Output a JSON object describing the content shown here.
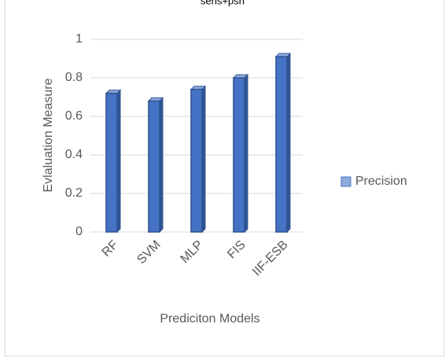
{
  "chart_data": {
    "type": "bar",
    "title": "sens+psn",
    "x_label": "Prediciton Models",
    "y_label": "Evlaluation Measure",
    "categories": [
      "RF",
      "SVM",
      "MLP",
      "FIS",
      "IIF-ESB"
    ],
    "series": [
      {
        "name": "Precision",
        "color": "#4472c4",
        "values": [
          0.72,
          0.68,
          0.74,
          0.8,
          0.91
        ]
      }
    ],
    "ylim": [
      0,
      1
    ],
    "yticks": [
      0,
      0.2,
      0.4,
      0.6,
      0.8,
      1
    ],
    "grid": true,
    "legend": "right"
  }
}
